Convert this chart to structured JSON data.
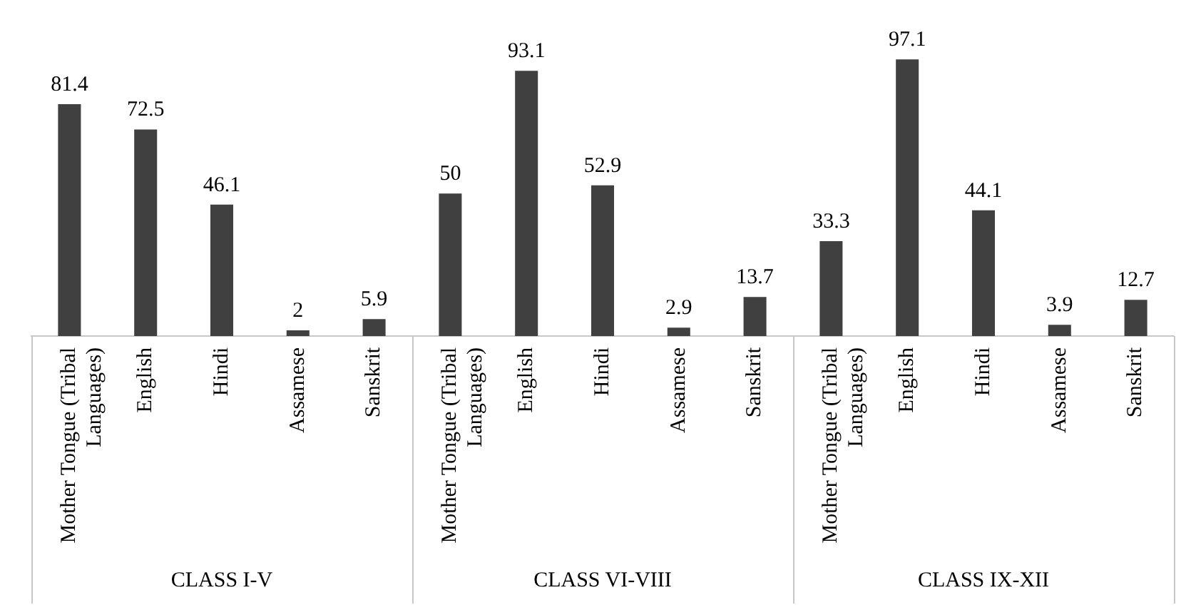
{
  "chart_data": {
    "type": "bar",
    "categories": [
      "Mother Tongue (Tribal Languages)",
      "English",
      "Hindi",
      "Assamese",
      "Sanskrit",
      "Mother Tongue (Tribal Languages)",
      "English",
      "Hindi",
      "Assamese",
      "Sanskrit",
      "Mother Tongue (Tribal Languages)",
      "English",
      "Hindi",
      "Assamese",
      "Sanskrit"
    ],
    "values": [
      81.4,
      72.5,
      46.1,
      2,
      5.9,
      50,
      93.1,
      52.9,
      2.9,
      13.7,
      33.3,
      97.1,
      44.1,
      3.9,
      12.7
    ],
    "color": "#404040",
    "data_labels": true,
    "annotations": [
      "CLASS I-V",
      "CLASS VI-VIII",
      "CLASS IX-XII"
    ],
    "tick_labels": "x",
    "grid": false,
    "legend": false
  }
}
